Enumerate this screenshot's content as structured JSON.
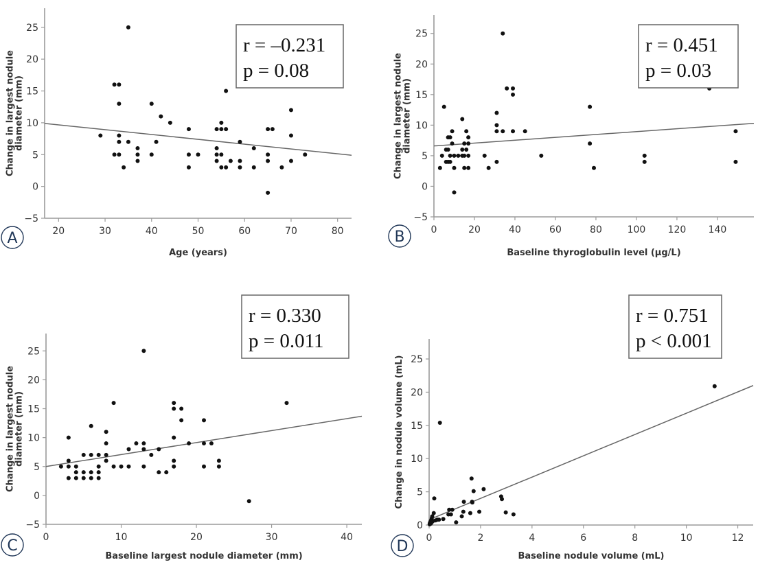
{
  "chart_data": [
    {
      "id": "A",
      "type": "scatter",
      "panel_label": "A",
      "title": "",
      "xlabel": "Age (years)",
      "ylabel_lines": [
        "Change in largest nodule",
        "diameter (mm)"
      ],
      "xlim": [
        17,
        83
      ],
      "ylim": [
        -5,
        28
      ],
      "xticks": [
        20,
        30,
        40,
        50,
        60,
        70,
        80
      ],
      "yticks": [
        -5,
        0,
        5,
        10,
        15,
        20,
        25
      ],
      "stats": {
        "r": "r = –0.231",
        "p": "p = 0.08"
      },
      "fit_line": {
        "x": [
          17,
          83
        ],
        "y": [
          9.9,
          4.9
        ]
      },
      "points": [
        [
          29,
          8
        ],
        [
          32,
          16
        ],
        [
          33,
          16
        ],
        [
          33,
          13
        ],
        [
          32,
          5
        ],
        [
          33,
          5
        ],
        [
          33,
          7
        ],
        [
          33,
          8
        ],
        [
          34,
          3
        ],
        [
          35,
          25
        ],
        [
          35,
          7
        ],
        [
          37,
          6
        ],
        [
          37,
          5
        ],
        [
          37,
          4
        ],
        [
          40,
          13
        ],
        [
          40,
          5
        ],
        [
          41,
          7
        ],
        [
          42,
          11
        ],
        [
          44,
          10
        ],
        [
          48,
          9
        ],
        [
          48,
          5
        ],
        [
          48,
          3
        ],
        [
          50,
          5
        ],
        [
          54,
          9
        ],
        [
          54,
          6
        ],
        [
          54,
          5
        ],
        [
          54,
          4
        ],
        [
          55,
          10
        ],
        [
          55,
          9
        ],
        [
          55,
          5
        ],
        [
          55,
          3
        ],
        [
          56,
          15
        ],
        [
          56,
          9
        ],
        [
          56,
          3
        ],
        [
          57,
          4
        ],
        [
          59,
          7
        ],
        [
          59,
          4
        ],
        [
          59,
          3
        ],
        [
          62,
          6
        ],
        [
          62,
          3
        ],
        [
          65,
          9
        ],
        [
          65,
          5
        ],
        [
          65,
          4
        ],
        [
          65,
          -1
        ],
        [
          66,
          9
        ],
        [
          67,
          16
        ],
        [
          68,
          3
        ],
        [
          70,
          12
        ],
        [
          70,
          8
        ],
        [
          70,
          4
        ],
        [
          73,
          5
        ]
      ]
    },
    {
      "id": "B",
      "type": "scatter",
      "panel_label": "B",
      "title": "",
      "xlabel": "Baseline thyroglobulin level (µg/L)",
      "ylabel_lines": [
        "Change in largest nodule",
        "diameter (mm)"
      ],
      "xlim": [
        0,
        158
      ],
      "ylim": [
        -5,
        28
      ],
      "xticks": [
        0,
        20,
        40,
        60,
        80,
        100,
        120,
        140
      ],
      "yticks": [
        -5,
        0,
        5,
        10,
        15,
        20,
        25
      ],
      "stats": {
        "r": "r = 0.451",
        "p": "p = 0.03"
      },
      "fit_line": {
        "x": [
          0,
          158
        ],
        "y": [
          6.6,
          10.3
        ]
      },
      "points": [
        [
          3,
          3
        ],
        [
          4,
          5
        ],
        [
          5,
          13
        ],
        [
          6,
          6
        ],
        [
          6,
          4
        ],
        [
          7,
          8
        ],
        [
          7,
          6
        ],
        [
          7,
          4
        ],
        [
          8,
          8
        ],
        [
          8,
          5
        ],
        [
          8,
          4
        ],
        [
          9,
          9
        ],
        [
          9,
          7
        ],
        [
          10,
          5
        ],
        [
          10,
          3
        ],
        [
          10,
          -1
        ],
        [
          12,
          5
        ],
        [
          14,
          11
        ],
        [
          14,
          6
        ],
        [
          14,
          5
        ],
        [
          15,
          7
        ],
        [
          15,
          5
        ],
        [
          15,
          3
        ],
        [
          16,
          9
        ],
        [
          16,
          6
        ],
        [
          17,
          8
        ],
        [
          17,
          7
        ],
        [
          17,
          5
        ],
        [
          17,
          3
        ],
        [
          25,
          5
        ],
        [
          27,
          3
        ],
        [
          31,
          12
        ],
        [
          31,
          10
        ],
        [
          31,
          9
        ],
        [
          31,
          4
        ],
        [
          34,
          25
        ],
        [
          34,
          9
        ],
        [
          36,
          16
        ],
        [
          39,
          16
        ],
        [
          39,
          15
        ],
        [
          39,
          9
        ],
        [
          45,
          9
        ],
        [
          53,
          5
        ],
        [
          77,
          13
        ],
        [
          77,
          7
        ],
        [
          79,
          3
        ],
        [
          104,
          5
        ],
        [
          104,
          4
        ],
        [
          136,
          16
        ],
        [
          149,
          9
        ],
        [
          149,
          4
        ]
      ]
    },
    {
      "id": "C",
      "type": "scatter",
      "panel_label": "C",
      "title": "",
      "xlabel": "Baseline largest nodule diameter (mm)",
      "ylabel_lines": [
        "Change in largest nodule",
        "diameter (mm)"
      ],
      "xlim": [
        0,
        42
      ],
      "ylim": [
        -5,
        28
      ],
      "xticks": [
        0,
        10,
        20,
        30,
        40
      ],
      "yticks": [
        -5,
        0,
        5,
        10,
        15,
        20,
        25
      ],
      "stats": {
        "r": "r = 0.330",
        "p": "p = 0.011"
      },
      "fit_line": {
        "x": [
          0,
          42
        ],
        "y": [
          5.0,
          13.7
        ]
      },
      "points": [
        [
          2,
          5
        ],
        [
          3,
          10
        ],
        [
          3,
          6
        ],
        [
          3,
          5
        ],
        [
          3,
          3
        ],
        [
          4,
          5
        ],
        [
          4,
          4
        ],
        [
          4,
          3
        ],
        [
          5,
          7
        ],
        [
          5,
          4
        ],
        [
          5,
          3
        ],
        [
          6,
          12
        ],
        [
          6,
          7
        ],
        [
          6,
          4
        ],
        [
          6,
          3
        ],
        [
          7,
          7
        ],
        [
          7,
          5
        ],
        [
          7,
          4
        ],
        [
          7,
          3
        ],
        [
          8,
          11
        ],
        [
          8,
          9
        ],
        [
          8,
          7
        ],
        [
          8,
          6
        ],
        [
          9,
          16
        ],
        [
          9,
          5
        ],
        [
          10,
          5
        ],
        [
          11,
          8
        ],
        [
          11,
          5
        ],
        [
          12,
          9
        ],
        [
          13,
          25
        ],
        [
          13,
          9
        ],
        [
          13,
          8
        ],
        [
          13,
          5
        ],
        [
          14,
          7
        ],
        [
          15,
          8
        ],
        [
          15,
          4
        ],
        [
          16,
          4
        ],
        [
          17,
          16
        ],
        [
          17,
          15
        ],
        [
          17,
          10
        ],
        [
          17,
          6
        ],
        [
          17,
          5
        ],
        [
          18,
          15
        ],
        [
          18,
          13
        ],
        [
          19,
          9
        ],
        [
          21,
          13
        ],
        [
          21,
          9
        ],
        [
          21,
          5
        ],
        [
          22,
          9
        ],
        [
          23,
          6
        ],
        [
          23,
          5
        ],
        [
          27,
          -1
        ],
        [
          32,
          16
        ]
      ]
    },
    {
      "id": "D",
      "type": "scatter",
      "panel_label": "D",
      "title": "",
      "xlabel": "Baseline nodule volume (mL)",
      "ylabel_lines": [
        "Change in nodule volume (mL)"
      ],
      "xlim": [
        0,
        12.6
      ],
      "ylim": [
        0,
        28
      ],
      "xticks": [
        0,
        2,
        4,
        6,
        8,
        10,
        12
      ],
      "yticks": [
        0,
        5,
        10,
        15,
        20,
        25
      ],
      "stats": {
        "r": "r = 0.751",
        "p": "p < 0.001"
      },
      "fit_line": {
        "x": [
          0,
          12.6
        ],
        "y": [
          0.8,
          21.0
        ]
      },
      "points": [
        [
          0.02,
          0.1
        ],
        [
          0.03,
          0.3
        ],
        [
          0.05,
          0.5
        ],
        [
          0.06,
          0.2
        ],
        [
          0.08,
          0.7
        ],
        [
          0.1,
          1.0
        ],
        [
          0.12,
          1.3
        ],
        [
          0.1,
          0.4
        ],
        [
          0.15,
          0.6
        ],
        [
          0.18,
          1.8
        ],
        [
          0.2,
          4.0
        ],
        [
          0.25,
          0.7
        ],
        [
          0.32,
          0.8
        ],
        [
          0.38,
          0.8
        ],
        [
          0.42,
          15.4
        ],
        [
          0.55,
          0.9
        ],
        [
          0.75,
          1.6
        ],
        [
          0.78,
          2.3
        ],
        [
          0.85,
          1.6
        ],
        [
          0.9,
          2.3
        ],
        [
          1.05,
          0.4
        ],
        [
          1.27,
          1.3
        ],
        [
          1.33,
          2.0
        ],
        [
          1.35,
          3.5
        ],
        [
          1.6,
          1.8
        ],
        [
          1.65,
          7.0
        ],
        [
          1.67,
          3.5
        ],
        [
          1.68,
          3.4
        ],
        [
          1.73,
          5.1
        ],
        [
          1.95,
          2.0
        ],
        [
          2.12,
          5.4
        ],
        [
          2.8,
          4.3
        ],
        [
          2.83,
          3.9
        ],
        [
          2.98,
          1.9
        ],
        [
          3.28,
          1.6
        ],
        [
          11.1,
          20.9
        ]
      ]
    }
  ]
}
